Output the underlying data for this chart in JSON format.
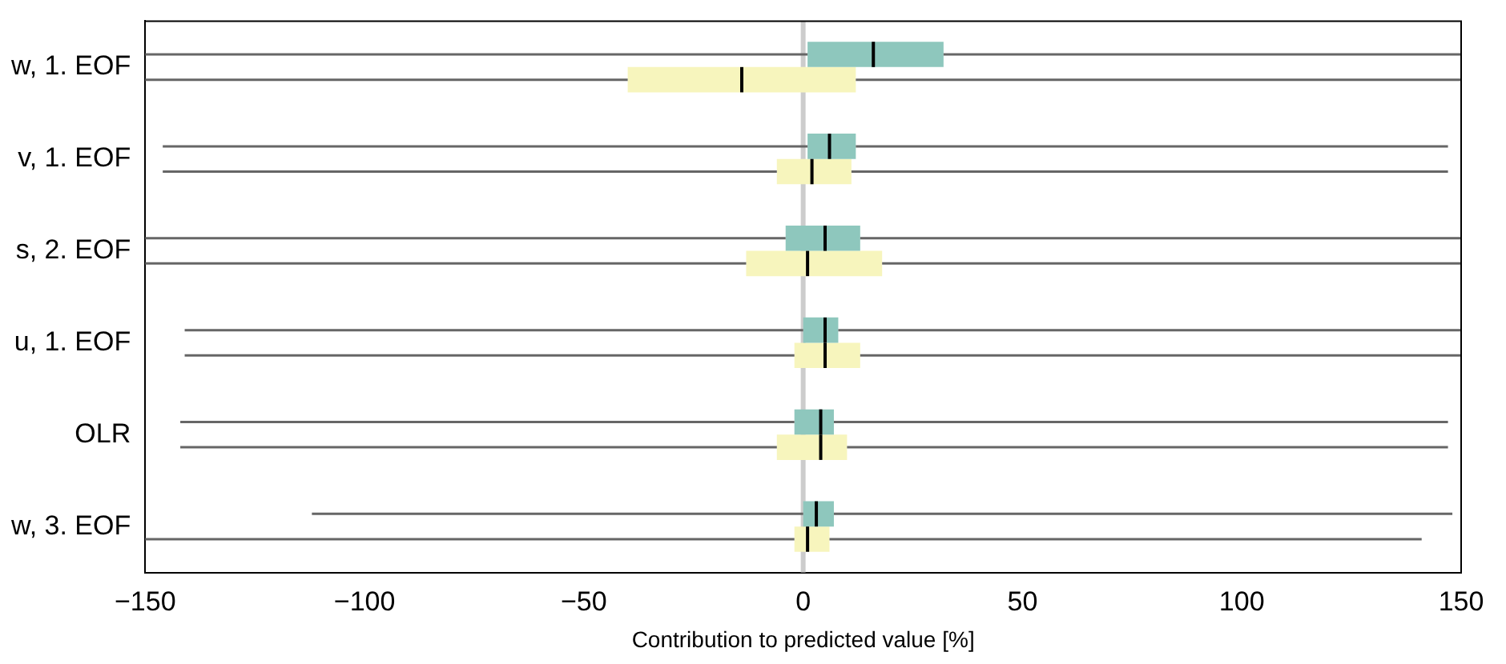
{
  "chart_data": {
    "type": "box",
    "orientation": "horizontal",
    "xlabel": "Contribution to predicted value [%]",
    "categories": [
      "w, 1. EOF",
      "v, 1. EOF",
      "s, 2. EOF",
      "u, 1. EOF",
      "OLR",
      "w, 3. EOF"
    ],
    "xlim": [
      -150,
      150
    ],
    "xticks": [
      {
        "value": -150,
        "label": "−150"
      },
      {
        "value": -100,
        "label": "−100"
      },
      {
        "value": -50,
        "label": "−50"
      },
      0,
      50,
      100,
      150
    ],
    "grid": false,
    "legend": false,
    "ref_lines": [
      {
        "axis": "x",
        "value": 0,
        "color": "#cccccc"
      }
    ],
    "series": [
      {
        "color": "#8ec7bd",
        "boxes": [
          {
            "low": -150,
            "q1": 1,
            "median": 16,
            "q3": 32,
            "high": 150
          },
          {
            "low": -146,
            "q1": 1,
            "median": 6,
            "q3": 12,
            "high": 147
          },
          {
            "low": -150,
            "q1": -4,
            "median": 5,
            "q3": 13,
            "high": 150
          },
          {
            "low": -141,
            "q1": 0,
            "median": 5,
            "q3": 8,
            "high": 150
          },
          {
            "low": -142,
            "q1": -2,
            "median": 4,
            "q3": 7,
            "high": 147
          },
          {
            "low": -112,
            "q1": 0,
            "median": 3,
            "q3": 7,
            "high": 148
          }
        ]
      },
      {
        "color": "#f7f5bd",
        "boxes": [
          {
            "low": -150,
            "q1": -40,
            "median": -14,
            "q3": 12,
            "high": 150
          },
          {
            "low": -146,
            "q1": -6,
            "median": 2,
            "q3": 11,
            "high": 147
          },
          {
            "low": -150,
            "q1": -13,
            "median": 1,
            "q3": 18,
            "high": 150
          },
          {
            "low": -141,
            "q1": -2,
            "median": 5,
            "q3": 13,
            "high": 150
          },
          {
            "low": -142,
            "q1": -6,
            "median": 4,
            "q3": 10,
            "high": 147
          },
          {
            "low": -150,
            "q1": -2,
            "median": 1,
            "q3": 6,
            "high": 141
          }
        ]
      }
    ]
  }
}
